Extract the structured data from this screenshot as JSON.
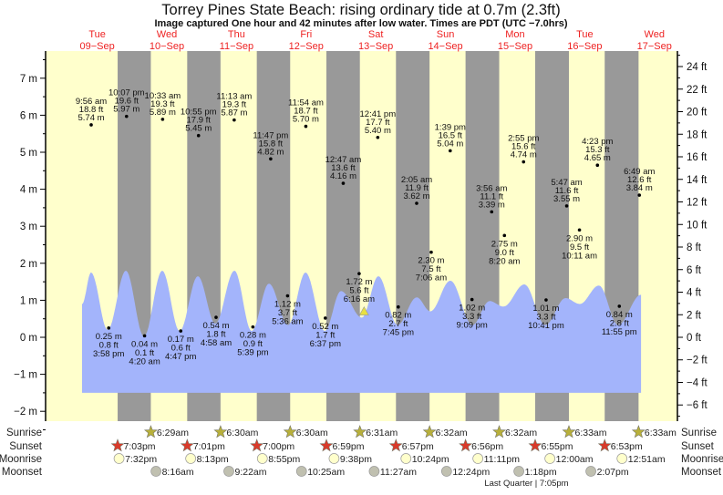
{
  "colors": {
    "day": "#ffffcc",
    "night": "#999999",
    "tide": "#a3b4fb",
    "dayLabel": "#ee2222",
    "sunrise": "#b8b03a",
    "sunset": "#d93a2a",
    "moonrise": "#ffffcc",
    "moonset": "#c0c0b0",
    "marker": "#e8e040"
  },
  "chart_data": {
    "type": "area",
    "title": "Torrey Pines State Beach: rising  ordinary tide at 0.7m (2.3ft)",
    "subtitle": "Image captured One hour and 42 minutes after low water. Times are PDT (UTC −7.0hrs)",
    "days": [
      {
        "dow": "Tue",
        "date": "09−Sep"
      },
      {
        "dow": "Wed",
        "date": "10−Sep"
      },
      {
        "dow": "Thu",
        "date": "11−Sep"
      },
      {
        "dow": "Fri",
        "date": "12−Sep"
      },
      {
        "dow": "Sat",
        "date": "13−Sep"
      },
      {
        "dow": "Sun",
        "date": "14−Sep"
      },
      {
        "dow": "Mon",
        "date": "15−Sep"
      },
      {
        "dow": "Tue",
        "date": "16−Sep"
      },
      {
        "dow": "Wed",
        "date": "17−Sep"
      }
    ],
    "x_range_hours_from_09Sep_midnight": [
      -5.8,
      212
    ],
    "ylim_m": [
      -2.4,
      7.6
    ],
    "left_axis_ticks": [
      {
        "v": -2,
        "label": "−2 m"
      },
      {
        "v": -1,
        "label": "−1 m"
      },
      {
        "v": 0,
        "label": "0 m"
      },
      {
        "v": 1,
        "label": "1 m"
      },
      {
        "v": 2,
        "label": "2 m"
      },
      {
        "v": 3,
        "label": "3 m"
      },
      {
        "v": 4,
        "label": "4 m"
      },
      {
        "v": 5,
        "label": "5 m"
      },
      {
        "v": 6,
        "label": "6 m"
      },
      {
        "v": 7,
        "label": "7 m"
      }
    ],
    "right_axis_ticks": [
      {
        "v": -6,
        "label": "−6 ft"
      },
      {
        "v": -4,
        "label": "−4 ft"
      },
      {
        "v": -2,
        "label": "−2 ft"
      },
      {
        "v": 0,
        "label": "0 ft"
      },
      {
        "v": 2,
        "label": "2 ft"
      },
      {
        "v": 4,
        "label": "4 ft"
      },
      {
        "v": 6,
        "label": "6 ft"
      },
      {
        "v": 8,
        "label": "8 ft"
      },
      {
        "v": 10,
        "label": "10 ft"
      },
      {
        "v": 12,
        "label": "12 ft"
      },
      {
        "v": 14,
        "label": "14 ft"
      },
      {
        "v": 16,
        "label": "16 ft"
      },
      {
        "v": 18,
        "label": "18 ft"
      },
      {
        "v": 20,
        "label": "20 ft"
      },
      {
        "v": 22,
        "label": "22 ft"
      },
      {
        "v": 24,
        "label": "24 ft"
      }
    ],
    "tide_curve_hours_m": [
      [
        6.8,
        0.9
      ],
      [
        9.9,
        1.75
      ],
      [
        15.6,
        0.2
      ],
      [
        21.9,
        1.8
      ],
      [
        28.1,
        0.02
      ],
      [
        34.4,
        1.8
      ],
      [
        40.4,
        0.17
      ],
      [
        46.7,
        1.65
      ],
      [
        52.7,
        0.37
      ],
      [
        59.3,
        1.8
      ],
      [
        65.2,
        0.17
      ],
      [
        71.2,
        1.45
      ],
      [
        77.8,
        0.33
      ],
      [
        83.8,
        1.75
      ],
      [
        90.4,
        0.17
      ],
      [
        96.0,
        1.25
      ],
      [
        103.2,
        0.53
      ],
      [
        108.9,
        1.65
      ],
      [
        115.5,
        0.33
      ],
      [
        122.1,
        1.08
      ],
      [
        126.8,
        0.7
      ],
      [
        133.7,
        1.53
      ],
      [
        141.3,
        0.33
      ],
      [
        147.2,
        0.98
      ],
      [
        152.0,
        0.83
      ],
      [
        159.2,
        1.43
      ],
      [
        166.4,
        0.33
      ],
      [
        173.4,
        1.06
      ],
      [
        178.3,
        0.9
      ],
      [
        184.9,
        1.4
      ],
      [
        191.5,
        0.33
      ],
      [
        199.4,
        1.15
      ]
    ],
    "tide_fill_floor_m": -1.5,
    "extremes": [
      {
        "day": 9,
        "type": "high",
        "time": "9:56 am",
        "ft": "18.8 ft",
        "m": "5.74 m",
        "value": 5.74
      },
      {
        "day": 9,
        "type": "low",
        "time": "3:58 pm",
        "ft": "0.8 ft",
        "m": "0.25 m",
        "value": 0.25
      },
      {
        "day": 9,
        "type": "high",
        "time": "10:07 pm",
        "ft": "19.6 ft",
        "m": "5.97 m",
        "value": 5.97
      },
      {
        "day": 10,
        "type": "low",
        "time": "4:20 am",
        "ft": "0.1 ft",
        "m": "0.04 m",
        "value": 0.04
      },
      {
        "day": 10,
        "type": "high",
        "time": "10:33 am",
        "ft": "19.3 ft",
        "m": "5.89 m",
        "value": 5.89
      },
      {
        "day": 10,
        "type": "low",
        "time": "4:47 pm",
        "ft": "0.6 ft",
        "m": "0.17 m",
        "value": 0.17
      },
      {
        "day": 10,
        "type": "high",
        "time": "10:55 pm",
        "ft": "17.9 ft",
        "m": "5.45 m",
        "value": 5.45
      },
      {
        "day": 11,
        "type": "low",
        "time": "4:58 am",
        "ft": "1.8 ft",
        "m": "0.54 m",
        "value": 0.54
      },
      {
        "day": 11,
        "type": "high",
        "time": "11:13 am",
        "ft": "19.3 ft",
        "m": "5.87 m",
        "value": 5.87
      },
      {
        "day": 11,
        "type": "low",
        "time": "5:39 pm",
        "ft": "0.9 ft",
        "m": "0.28 m",
        "value": 0.28
      },
      {
        "day": 11,
        "type": "high",
        "time": "11:47 pm",
        "ft": "15.8 ft",
        "m": "4.82 m",
        "value": 4.82
      },
      {
        "day": 12,
        "type": "low",
        "time": "5:36 am",
        "ft": "3.7 ft",
        "m": "1.12 m",
        "value": 1.12
      },
      {
        "day": 12,
        "type": "high",
        "time": "11:54 am",
        "ft": "18.7 ft",
        "m": "5.70 m",
        "value": 5.7
      },
      {
        "day": 12,
        "type": "low",
        "time": "6:37 pm",
        "ft": "1.7 ft",
        "m": "0.52 m",
        "value": 0.52
      },
      {
        "day": 13,
        "type": "high",
        "time": "12:47 am",
        "ft": "13.6 ft",
        "m": "4.16 m",
        "value": 4.16
      },
      {
        "day": 13,
        "type": "low",
        "time": "6:16 am",
        "ft": "5.6 ft",
        "m": "1.72 m",
        "value": 1.72
      },
      {
        "day": 13,
        "type": "high",
        "time": "12:41 pm",
        "ft": "17.7 ft",
        "m": "5.40 m",
        "value": 5.4
      },
      {
        "day": 13,
        "type": "low",
        "time": "7:45 pm",
        "ft": "2.7 ft",
        "m": "0.82 m",
        "value": 0.82
      },
      {
        "day": 14,
        "type": "high",
        "time": "2:05 am",
        "ft": "11.9 ft",
        "m": "3.62 m",
        "value": 3.62
      },
      {
        "day": 14,
        "type": "low",
        "time": "7:06 am",
        "ft": "7.5 ft",
        "m": "2.30 m",
        "value": 2.3
      },
      {
        "day": 14,
        "type": "high",
        "time": "1:39 pm",
        "ft": "16.5 ft",
        "m": "5.04 m",
        "value": 5.04
      },
      {
        "day": 14,
        "type": "low",
        "time": "9:09 pm",
        "ft": "3.3 ft",
        "m": "1.02 m",
        "value": 1.02
      },
      {
        "day": 15,
        "type": "high",
        "time": "3:56 am",
        "ft": "11.1 ft",
        "m": "3.39 m",
        "value": 3.39
      },
      {
        "day": 15,
        "type": "low",
        "time": "8:20 am",
        "ft": "9.0 ft",
        "m": "2.75 m",
        "value": 2.75
      },
      {
        "day": 15,
        "type": "high",
        "time": "2:55 pm",
        "ft": "15.6 ft",
        "m": "4.74 m",
        "value": 4.74
      },
      {
        "day": 15,
        "type": "low",
        "time": "10:41 pm",
        "ft": "3.3 ft",
        "m": "1.01 m",
        "value": 1.01
      },
      {
        "day": 16,
        "type": "high",
        "time": "5:47 am",
        "ft": "11.6 ft",
        "m": "3.55 m",
        "value": 3.55
      },
      {
        "day": 16,
        "type": "low",
        "time": "10:11 am",
        "ft": "9.5 ft",
        "m": "2.90 m",
        "value": 2.9
      },
      {
        "day": 16,
        "type": "high",
        "time": "4:23 pm",
        "ft": "15.3 ft",
        "m": "4.65 m",
        "value": 4.65
      },
      {
        "day": 16,
        "type": "low",
        "time": "11:55 pm",
        "ft": "2.8 ft",
        "m": "0.84 m",
        "value": 0.84
      },
      {
        "day": 17,
        "type": "high",
        "time": "6:49 am",
        "ft": "12.6 ft",
        "m": "3.84 m",
        "value": 3.84
      }
    ],
    "current": {
      "day": 13,
      "time": "7:58am",
      "value": 0.7
    }
  },
  "rows": {
    "sunrise": "Sunrise",
    "sunset": "Sunset",
    "moonrise": "Moonrise",
    "moonset": "Moonset"
  },
  "sunrise": [
    {
      "day": 10,
      "time": "6:29am"
    },
    {
      "day": 11,
      "time": "6:30am"
    },
    {
      "day": 12,
      "time": "6:30am"
    },
    {
      "day": 13,
      "time": "6:31am"
    },
    {
      "day": 14,
      "time": "6:32am"
    },
    {
      "day": 15,
      "time": "6:32am"
    },
    {
      "day": 16,
      "time": "6:33am"
    },
    {
      "day": 17,
      "time": "6:33am"
    }
  ],
  "sunset": [
    {
      "day": 9,
      "time": "7:03pm"
    },
    {
      "day": 10,
      "time": "7:01pm"
    },
    {
      "day": 11,
      "time": "7:00pm"
    },
    {
      "day": 12,
      "time": "6:59pm"
    },
    {
      "day": 13,
      "time": "6:57pm"
    },
    {
      "day": 14,
      "time": "6:56pm"
    },
    {
      "day": 15,
      "time": "6:55pm"
    },
    {
      "day": 16,
      "time": "6:53pm"
    }
  ],
  "moonrise": [
    {
      "day": 9,
      "time": "7:32pm"
    },
    {
      "day": 10,
      "time": "8:13pm"
    },
    {
      "day": 11,
      "time": "8:55pm"
    },
    {
      "day": 12,
      "time": "9:38pm"
    },
    {
      "day": 13,
      "time": "10:24pm"
    },
    {
      "day": 14,
      "time": "11:11pm"
    },
    {
      "day": 16,
      "time": "12:00am"
    },
    {
      "day": 17,
      "time": "12:51am"
    }
  ],
  "moonset": [
    {
      "day": 10,
      "time": "8:16am"
    },
    {
      "day": 11,
      "time": "9:22am"
    },
    {
      "day": 12,
      "time": "10:25am"
    },
    {
      "day": 13,
      "time": "11:27am"
    },
    {
      "day": 14,
      "time": "12:24pm"
    },
    {
      "day": 15,
      "time": "1:18pm"
    },
    {
      "day": 16,
      "time": "2:07pm"
    }
  ],
  "moon_phase": {
    "day": 15,
    "time": "7:05pm",
    "label": "Last Quarter | 7:05pm"
  }
}
